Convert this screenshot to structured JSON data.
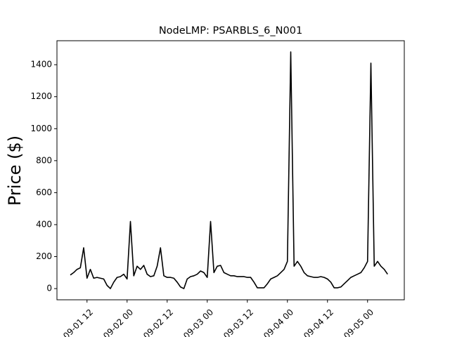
{
  "chart_data": {
    "type": "line",
    "title": "NodeLMP: PSARBLS_6_N001",
    "y_label": "Price ($)",
    "x": [
      "09-01 07",
      "09-01 08",
      "09-01 09",
      "09-01 10",
      "09-01 11",
      "09-01 12",
      "09-01 13",
      "09-01 14",
      "09-01 15",
      "09-01 16",
      "09-01 17",
      "09-01 18",
      "09-01 19",
      "09-01 20",
      "09-01 21",
      "09-01 22",
      "09-01 23",
      "09-02 00",
      "09-02 01",
      "09-02 02",
      "09-02 03",
      "09-02 04",
      "09-02 05",
      "09-02 06",
      "09-02 07",
      "09-02 08",
      "09-02 09",
      "09-02 10",
      "09-02 11",
      "09-02 12",
      "09-02 13",
      "09-02 14",
      "09-02 15",
      "09-02 16",
      "09-02 17",
      "09-02 18",
      "09-02 19",
      "09-02 20",
      "09-02 21",
      "09-02 22",
      "09-02 23",
      "09-03 00",
      "09-03 01",
      "09-03 02",
      "09-03 03",
      "09-03 04",
      "09-03 05",
      "09-03 06",
      "09-03 07",
      "09-03 08",
      "09-03 09",
      "09-03 10",
      "09-03 11",
      "09-03 12",
      "09-03 13",
      "09-03 14",
      "09-03 15",
      "09-03 16",
      "09-03 17",
      "09-03 18",
      "09-03 19",
      "09-03 20",
      "09-03 21",
      "09-03 22",
      "09-03 23",
      "09-04 00",
      "09-04 01",
      "09-04 02",
      "09-04 03",
      "09-04 04",
      "09-04 05",
      "09-04 06",
      "09-04 07",
      "09-04 08",
      "09-04 09",
      "09-04 10",
      "09-04 11",
      "09-04 12",
      "09-04 13",
      "09-04 14",
      "09-04 15",
      "09-04 16",
      "09-04 17",
      "09-04 18",
      "09-04 19",
      "09-04 20",
      "09-04 21",
      "09-04 22",
      "09-04 23",
      "09-05 00",
      "09-05 01",
      "09-05 02",
      "09-05 03",
      "09-05 04",
      "09-05 05",
      "09-05 06"
    ],
    "series": [
      {
        "color": "#000000",
        "values": [
          85,
          100,
          120,
          130,
          255,
          65,
          120,
          65,
          70,
          65,
          60,
          20,
          0,
          40,
          70,
          75,
          90,
          60,
          420,
          80,
          140,
          120,
          145,
          90,
          75,
          80,
          140,
          255,
          80,
          70,
          70,
          65,
          40,
          10,
          0,
          60,
          75,
          80,
          90,
          110,
          100,
          70,
          420,
          100,
          140,
          145,
          100,
          90,
          80,
          80,
          75,
          75,
          75,
          70,
          70,
          40,
          5,
          5,
          5,
          30,
          60,
          70,
          80,
          100,
          120,
          170,
          1480,
          140,
          170,
          140,
          100,
          80,
          75,
          70,
          70,
          75,
          70,
          60,
          40,
          5,
          5,
          10,
          30,
          50,
          70,
          80,
          90,
          100,
          130,
          170,
          1410,
          140,
          170,
          140,
          120,
          90
        ]
      }
    ],
    "xlim": [
      "09-01 03",
      "09-05 11"
    ],
    "xticks": [
      "09-01 12",
      "09-02 00",
      "09-02 12",
      "09-03 00",
      "09-03 12",
      "09-04 00",
      "09-04 12",
      "09-05 00"
    ],
    "ylim": [
      -70,
      1550
    ],
    "yticks": [
      0,
      200,
      400,
      600,
      800,
      1000,
      1200,
      1400
    ]
  }
}
